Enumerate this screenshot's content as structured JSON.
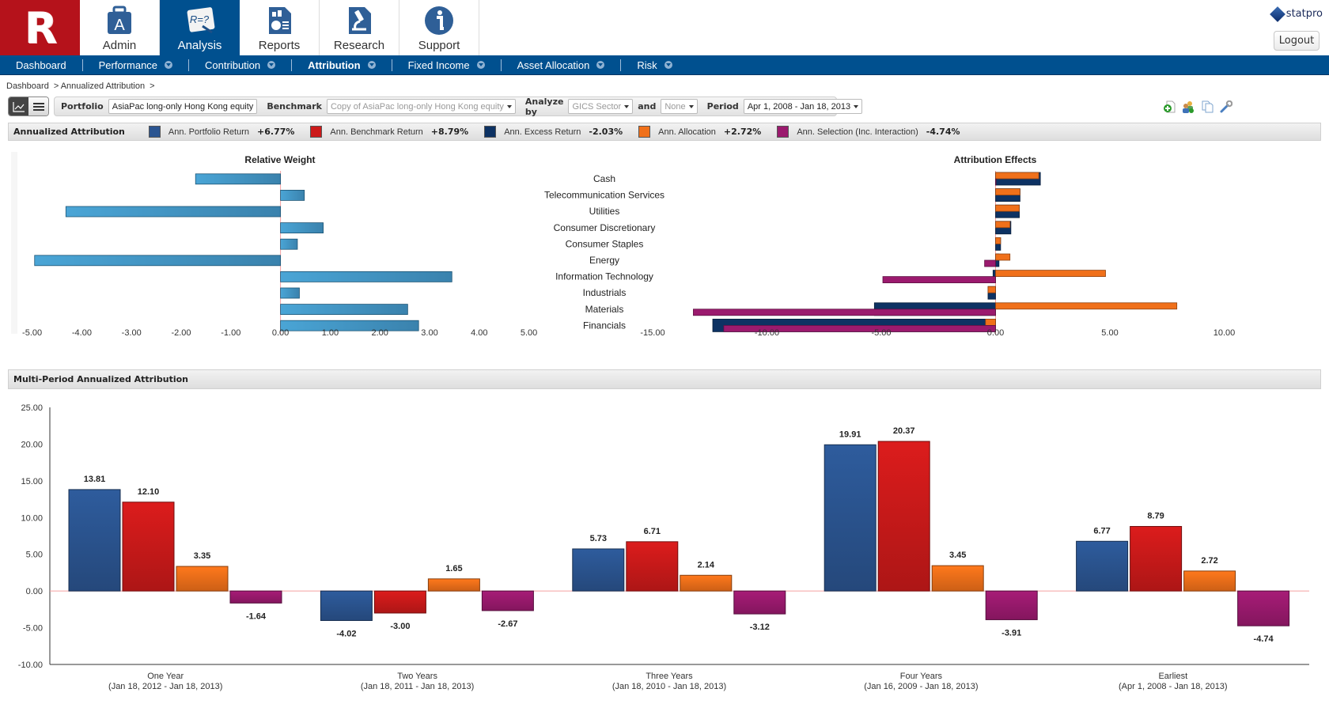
{
  "header": {
    "logo_letter": "R",
    "tabs": [
      {
        "label": "Admin",
        "icon": "briefcase-icon"
      },
      {
        "label": "Analysis",
        "icon": "formula-board-icon",
        "active": true
      },
      {
        "label": "Reports",
        "icon": "report-icon"
      },
      {
        "label": "Research",
        "icon": "microscope-icon"
      },
      {
        "label": "Support",
        "icon": "info-icon"
      }
    ],
    "brand": "statpro",
    "logout_label": "Logout"
  },
  "nav": {
    "items": [
      {
        "label": "Dashboard",
        "dropdown": false
      },
      {
        "label": "Performance",
        "dropdown": true
      },
      {
        "label": "Contribution",
        "dropdown": true
      },
      {
        "label": "Attribution",
        "dropdown": true,
        "active": true
      },
      {
        "label": "Fixed Income",
        "dropdown": true
      },
      {
        "label": "Asset Allocation",
        "dropdown": true
      },
      {
        "label": "Risk",
        "dropdown": true
      }
    ]
  },
  "breadcrumb": [
    "Dashboard",
    "> Annualized Attribution",
    ">"
  ],
  "toolbar": {
    "portfolio_label": "Portfolio",
    "portfolio_value": "AsiaPac long-only Hong Kong equity",
    "benchmark_label": "Benchmark",
    "benchmark_value": "Copy of AsiaPac long-only Hong Kong equity",
    "analyze_label": "Analyze by",
    "analyze_value": "GICS Sector",
    "and_label": "and",
    "and_value": "None",
    "period_label": "Period",
    "period_value": "Apr 1, 2008 - Jan 18, 2013",
    "icons": [
      "add-page-icon",
      "add-users-icon",
      "copy-icon",
      "wrench-icon"
    ]
  },
  "legend": {
    "title": "Annualized Attribution",
    "items": [
      {
        "label": "Ann. Portfolio Return",
        "value": "+6.77%",
        "color": "#2b5591"
      },
      {
        "label": "Ann. Benchmark Return",
        "value": "+8.79%",
        "color": "#cc1a1a"
      },
      {
        "label": "Ann. Excess Return",
        "value": "-2.03%",
        "color": "#0d3263"
      },
      {
        "label": "Ann. Allocation",
        "value": "+2.72%",
        "color": "#f0701a"
      },
      {
        "label": "Ann. Selection (Inc. Interaction)",
        "value": "-4.74%",
        "color": "#9b1a6e"
      }
    ]
  },
  "section2_title": "Multi-Period Annualized Attribution",
  "chart_data": [
    {
      "type": "bar",
      "orientation": "horizontal",
      "title": "Relative Weight",
      "categories": [
        "Cash",
        "Telecommunication Services",
        "Utilities",
        "Consumer Discretionary",
        "Consumer Staples",
        "Energy",
        "Information Technology",
        "Industrials",
        "Materials",
        "Financials"
      ],
      "values": [
        -1.71,
        0.48,
        -4.32,
        0.86,
        0.34,
        -4.95,
        3.45,
        0.38,
        2.56,
        2.78
      ],
      "xlim": [
        -5,
        5
      ],
      "xticks": [
        "-5.00",
        "-4.00",
        "-3.00",
        "-2.00",
        "-1.00",
        "0.00",
        "1.00",
        "2.00",
        "3.00",
        "4.00",
        "5.00"
      ],
      "color": "#3f94c7"
    },
    {
      "type": "bar",
      "orientation": "horizontal",
      "title": "Attribution Effects",
      "categories": [
        "Cash",
        "Telecommunication Services",
        "Utilities",
        "Consumer Discretionary",
        "Consumer Staples",
        "Energy",
        "Information Technology",
        "Industrials",
        "Materials",
        "Financials"
      ],
      "series": [
        {
          "name": "Ann. Allocation",
          "color": "#f0701a",
          "values": [
            1.89,
            1.07,
            1.04,
            0.63,
            0.22,
            0.63,
            4.81,
            -0.33,
            7.93,
            -0.44
          ]
        },
        {
          "name": "Ann. Excess Return",
          "color": "#0d3263",
          "values": [
            1.96,
            1.07,
            1.04,
            0.67,
            0.22,
            0.15,
            -0.11,
            -0.33,
            -5.3,
            -12.37
          ]
        },
        {
          "name": "Ann. Selection (Inc. Interaction)",
          "color": "#9b1a6e",
          "values": [
            0.02,
            0.0,
            0.0,
            0.0,
            0.0,
            -0.48,
            -4.93,
            0.0,
            -13.22,
            -11.89
          ]
        }
      ],
      "xlim": [
        -15,
        15
      ],
      "xticks": [
        "-15.00",
        "-10.00",
        "-5.00",
        "0.00",
        "5.00",
        "10.00"
      ]
    },
    {
      "type": "bar",
      "title": "Multi-Period Annualized Attribution",
      "categories": [
        {
          "name": "One Year",
          "range": "(Jan 18, 2012 - Jan 18, 2013)"
        },
        {
          "name": "Two Years",
          "range": "(Jan 18, 2011 - Jan 18, 2013)"
        },
        {
          "name": "Three Years",
          "range": "(Jan 18, 2010 - Jan 18, 2013)"
        },
        {
          "name": "Four Years",
          "range": "(Jan 16, 2009 - Jan 18, 2013)"
        },
        {
          "name": "Earliest",
          "range": "(Apr 1, 2008 - Jan 18, 2013)"
        }
      ],
      "series": [
        {
          "name": "Ann. Portfolio Return",
          "color": "#2b5591",
          "values": [
            13.81,
            -4.02,
            5.73,
            19.91,
            6.77
          ]
        },
        {
          "name": "Ann. Benchmark Return",
          "color": "#cc1a1a",
          "values": [
            12.1,
            -3.0,
            6.71,
            20.37,
            8.79
          ]
        },
        {
          "name": "Ann. Allocation",
          "color": "#f0701a",
          "values": [
            3.35,
            1.65,
            2.14,
            3.45,
            2.72
          ]
        },
        {
          "name": "Ann. Selection (Inc. Interaction)",
          "color": "#9b1a6e",
          "values": [
            -1.64,
            -2.67,
            -3.12,
            -3.91,
            -4.74
          ]
        }
      ],
      "ylim": [
        -10,
        25
      ],
      "yticks": [
        "-10.00",
        "-5.00",
        "0.00",
        "5.00",
        "10.00",
        "15.00",
        "20.00",
        "25.00"
      ]
    }
  ]
}
